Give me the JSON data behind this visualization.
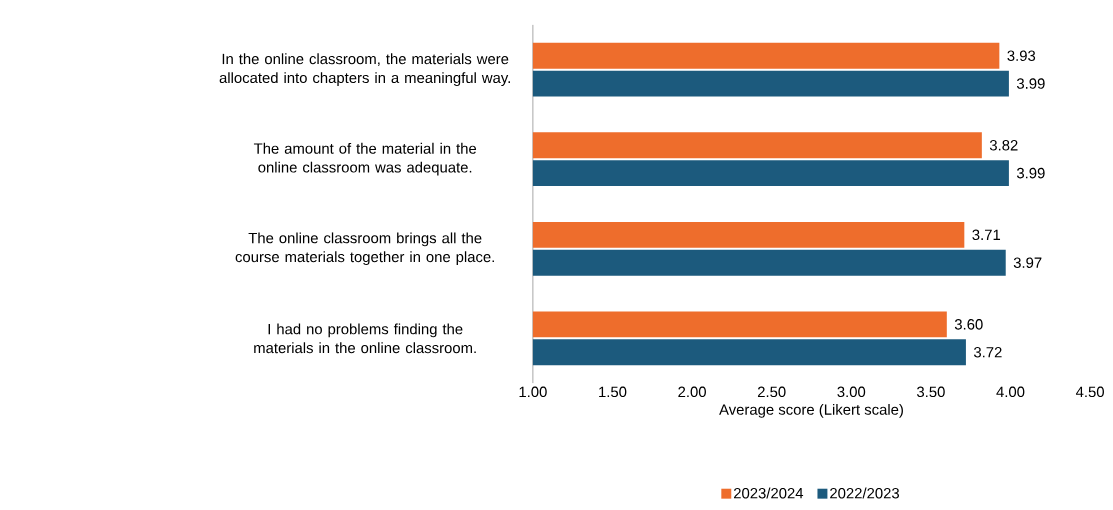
{
  "chart_data": {
    "type": "bar",
    "orientation": "horizontal",
    "xlabel": "Average score (Likert scale)",
    "categories": [
      "In the online classroom, the materials were allocated into chapters in a meaningful way.",
      "The amount of the material in the online classroom was adequate.",
      "The online classroom brings all the course materials together in one place.",
      "I had no problems finding the materials in the online classroom."
    ],
    "series": [
      {
        "name": "2023/2024",
        "color": "#ee6d2c",
        "values": [
          3.93,
          3.82,
          3.71,
          3.6
        ],
        "value_labels": [
          "3.93",
          "3.82",
          "3.71",
          "3.60"
        ]
      },
      {
        "name": "2022/2023",
        "color": "#1c5a7d",
        "values": [
          3.99,
          3.99,
          3.97,
          3.72
        ],
        "value_labels": [
          "3.99",
          "3.99",
          "3.97",
          "3.72"
        ]
      }
    ],
    "xlim": [
      1,
      4.5
    ],
    "xticks": [
      {
        "value": 1,
        "label": "1.00"
      },
      {
        "value": 1.5,
        "label": "1.50"
      },
      {
        "value": 2,
        "label": "2.00"
      },
      {
        "value": 2.5,
        "label": "2.50"
      },
      {
        "value": 3,
        "label": "3.00"
      },
      {
        "value": 3.5,
        "label": "3.50"
      },
      {
        "value": 4,
        "label": "4.00"
      },
      {
        "value": 4.5,
        "label": "4.50"
      }
    ],
    "grid": false,
    "legend": "bottom"
  }
}
